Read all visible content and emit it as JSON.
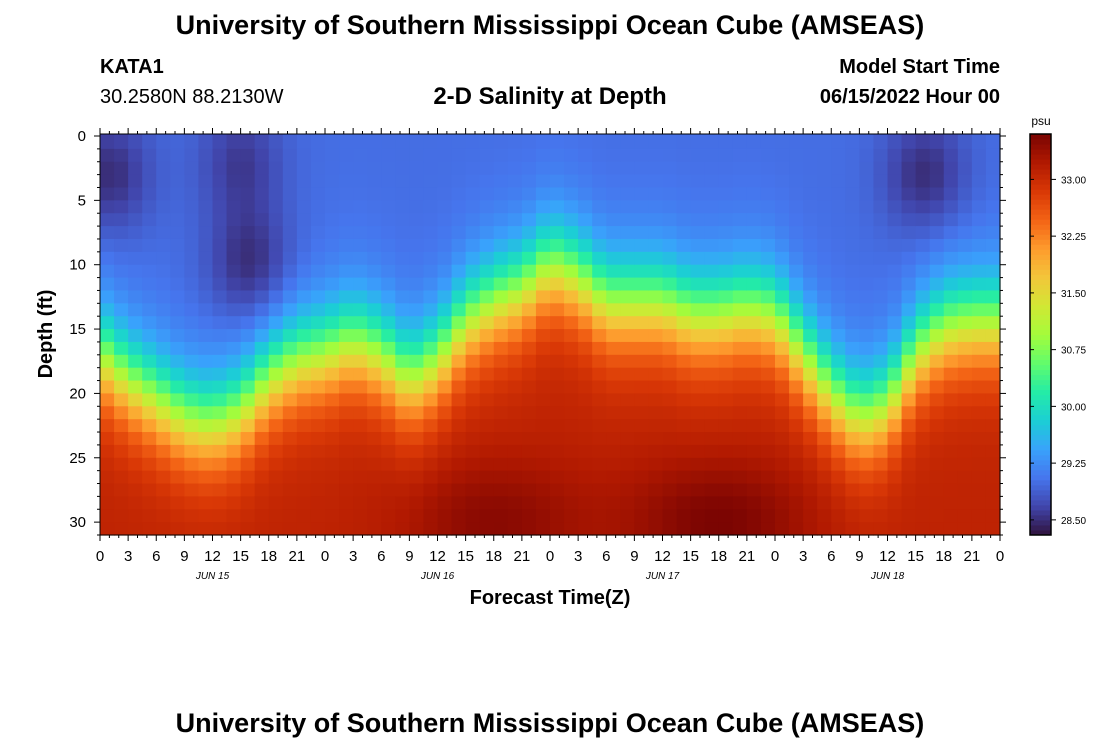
{
  "header": {
    "title": "University of Southern Mississippi Ocean Cube (AMSEAS)",
    "station_id": "KATA1",
    "station_coords": "30.2580N  88.2130W",
    "subtitle": "2-D Salinity at Depth",
    "model_start_label": "Model Start Time",
    "model_start_value": "06/15/2022 Hour 00"
  },
  "footer": {
    "title": "University of Southern Mississippi Ocean Cube (AMSEAS)"
  },
  "colors": {
    "background": "#ffffff",
    "text": "#000000",
    "palette": [
      "#30123b",
      "#4145ab",
      "#4675ed",
      "#39a2fc",
      "#1bcfd4",
      "#24eca6",
      "#61fc6c",
      "#a4fc3b",
      "#d1e834",
      "#f3c63a",
      "#fe9b2d",
      "#f36315",
      "#d93806",
      "#b11901",
      "#7a0402"
    ]
  },
  "chart_data": {
    "type": "heatmap",
    "xlabel": "Forecast Time(Z)",
    "ylabel": "Depth (ft)",
    "colorbar_unit": "psu",
    "xlim": [
      0,
      96
    ],
    "ylim": [
      0,
      31
    ],
    "x_tick_labels": [
      "0",
      "3",
      "6",
      "9",
      "12",
      "15",
      "18",
      "21",
      "0",
      "3",
      "6",
      "9",
      "12",
      "15",
      "18",
      "21",
      "0",
      "3",
      "6",
      "9",
      "12",
      "15",
      "18",
      "21",
      "0",
      "3",
      "6",
      "9",
      "12",
      "15",
      "18",
      "21",
      "0"
    ],
    "day_labels": [
      "JUN 15",
      "JUN 16",
      "JUN 17",
      "JUN 18"
    ],
    "day_label_hours": [
      12,
      36,
      60,
      84
    ],
    "y_ticks": [
      0,
      5,
      10,
      15,
      20,
      25,
      30
    ],
    "y_tick_labels": [
      "0",
      "5",
      "10",
      "15",
      "20",
      "25",
      "30"
    ],
    "colorbar_ticks": [
      28.5,
      29.25,
      30.0,
      30.75,
      31.5,
      32.25,
      33.0
    ],
    "colorbar_tick_labels": [
      "28.50",
      "29.25",
      "30.00",
      "30.75",
      "31.50",
      "32.25",
      "33.00"
    ],
    "colorbar_range": [
      28.3,
      33.6
    ],
    "surface_salinity": 29.0,
    "bottom_salinity": 33.1,
    "halocline_depth_ft": {
      "hours": [
        0,
        3,
        6,
        9,
        12,
        15,
        18,
        21,
        24,
        27,
        30,
        33,
        36,
        39,
        42,
        45,
        48,
        51,
        54,
        57,
        60,
        63,
        66,
        69,
        72,
        75,
        78,
        81,
        84,
        87,
        90,
        93,
        96
      ],
      "values": [
        17,
        19,
        20.5,
        22,
        22.5,
        21.5,
        19,
        17.5,
        17,
        16,
        17,
        19,
        17.5,
        14.5,
        13,
        12,
        10,
        11,
        13,
        13,
        13,
        14,
        14,
        13.5,
        14,
        17,
        20,
        22,
        21,
        17,
        15,
        14.5,
        14.5
      ]
    },
    "low_salinity_cores": [
      {
        "hour": 1,
        "depth_ft": 3,
        "value": 28.5
      },
      {
        "hour": 16,
        "depth_ft": 10,
        "value": 28.5
      },
      {
        "hour": 15,
        "depth_ft": 2,
        "value": 28.6
      },
      {
        "hour": 88,
        "depth_ft": 3,
        "value": 28.5
      }
    ],
    "high_salinity_cores": [
      {
        "hour": 42,
        "depth_ft": 30,
        "value": 33.5
      },
      {
        "hour": 66,
        "depth_ft": 30,
        "value": 33.6
      }
    ]
  }
}
